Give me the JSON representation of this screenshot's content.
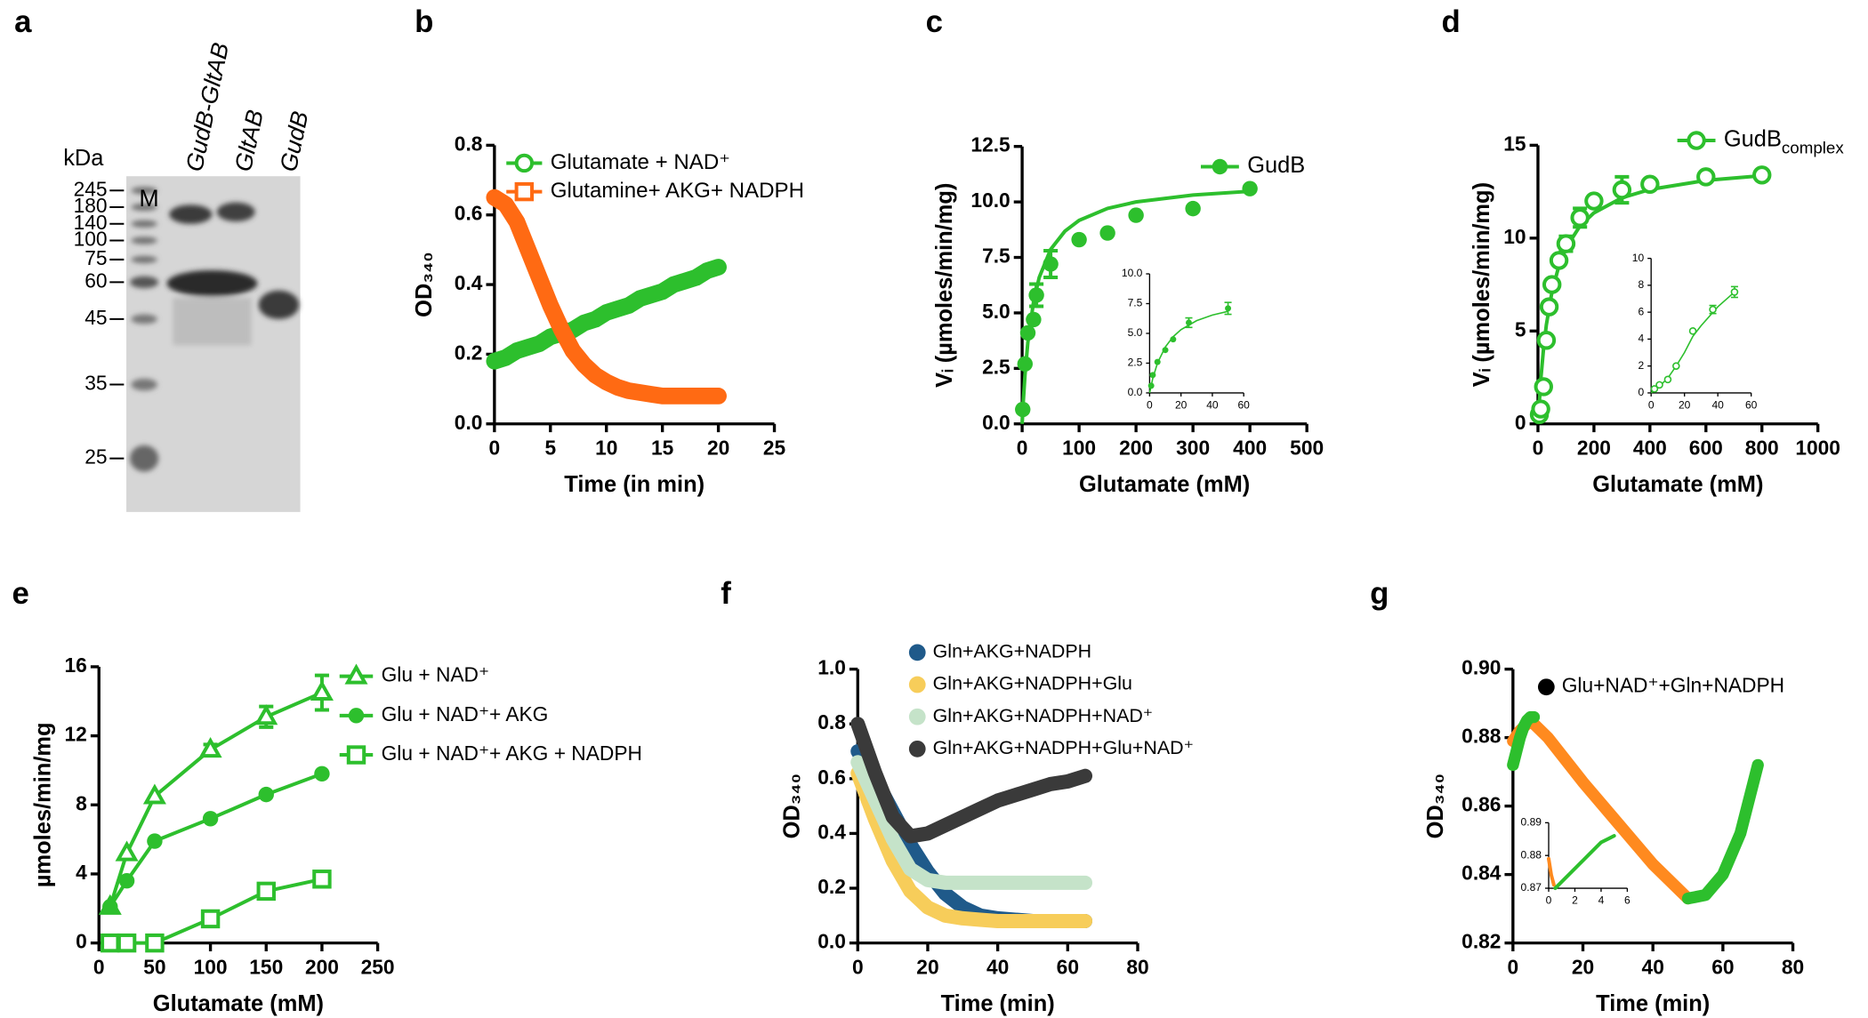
{
  "gel": {
    "panel": "a",
    "unit": "kDa",
    "ladder": [
      245,
      180,
      140,
      100,
      75,
      60,
      45,
      35,
      25
    ],
    "lanes": [
      "M",
      "GudB-GltAB",
      "GltAB",
      "GudB"
    ]
  },
  "chart_data": [
    {
      "type": "line",
      "panel": "b",
      "xlabel": "Time (in min)",
      "ylabel": "OD₃₄₀",
      "xlim": [
        0,
        25
      ],
      "ylim": [
        0,
        0.8
      ],
      "xticks": [
        0,
        5,
        10,
        15,
        20,
        25
      ],
      "yticks": [
        {
          "value": 0,
          "label": "0.0"
        },
        0.2,
        0.4,
        0.6,
        0.8
      ],
      "series": [
        {
          "name": "Glutamate + NAD⁺",
          "color": "#2dbf2d",
          "marker": "open-circle",
          "dense": true,
          "x": [
            0,
            1,
            2,
            3,
            4,
            5,
            6,
            7,
            8,
            9,
            10,
            11,
            12,
            13,
            14,
            15,
            16,
            17,
            18,
            19,
            20
          ],
          "values": [
            0.18,
            0.19,
            0.21,
            0.22,
            0.23,
            0.25,
            0.26,
            0.27,
            0.29,
            0.3,
            0.32,
            0.33,
            0.34,
            0.36,
            0.37,
            0.38,
            0.4,
            0.41,
            0.42,
            0.44,
            0.45
          ]
        },
        {
          "name": "Glutamine+ AKG+ NADPH",
          "color": "#ff6a13",
          "marker": "open-square",
          "dense": true,
          "x": [
            0,
            1,
            2,
            3,
            4,
            5,
            6,
            7,
            8,
            9,
            10,
            11,
            12,
            13,
            14,
            15,
            16,
            17,
            18,
            19,
            20
          ],
          "values": [
            0.65,
            0.63,
            0.58,
            0.5,
            0.42,
            0.34,
            0.27,
            0.21,
            0.17,
            0.14,
            0.12,
            0.105,
            0.095,
            0.09,
            0.085,
            0.08,
            0.08,
            0.08,
            0.08,
            0.08,
            0.08
          ]
        }
      ]
    },
    {
      "type": "scatter",
      "panel": "c",
      "xlabel": "Glutamate (mM)",
      "ylabel": "Vᵢ (µmoles/min/mg)",
      "xlim": [
        0,
        500
      ],
      "ylim": [
        0,
        12.5
      ],
      "xticks": [
        0,
        100,
        200,
        300,
        400,
        500
      ],
      "yticks": [
        {
          "value": 0,
          "label": "0.0"
        },
        2.5,
        {
          "value": 5,
          "label": "5.0"
        },
        7.5,
        {
          "value": 10,
          "label": "10.0"
        },
        12.5
      ],
      "series": [
        {
          "name": "GudB",
          "color": "#2dbf2d",
          "marker": "circle",
          "x": [
            1,
            5,
            10,
            20,
            25,
            50,
            100,
            150,
            200,
            300,
            400
          ],
          "values": [
            0.65,
            2.7,
            4.1,
            4.7,
            5.8,
            7.2,
            8.3,
            8.6,
            9.4,
            9.7,
            10.6
          ],
          "errors": [
            0,
            0,
            0,
            0,
            0.5,
            0.6,
            0,
            0,
            0,
            0,
            0
          ],
          "fit": {
            "x": [
              0,
              2,
              5,
              10,
              20,
              30,
              50,
              75,
              100,
              150,
              200,
              300,
              400
            ],
            "values": [
              0,
              1.0,
              2.2,
              3.67,
              5.5,
              6.6,
              7.86,
              8.68,
              9.17,
              9.71,
              10.0,
              10.31,
              10.48
            ]
          }
        }
      ]
    },
    {
      "type": "scatter",
      "xlim": [
        0,
        60
      ],
      "ylim": [
        0,
        10
      ],
      "xticks": [
        0,
        20,
        40,
        60
      ],
      "yticks": [
        {
          "value": 0,
          "label": "0.0"
        },
        2.5,
        {
          "value": 5,
          "label": "5.0"
        },
        7.5,
        {
          "value": 10,
          "label": "10.0"
        }
      ],
      "series": [
        {
          "color": "#2dbf2d",
          "marker": "circle",
          "x": [
            1,
            2,
            5,
            10,
            15,
            25,
            50
          ],
          "values": [
            0.6,
            1.5,
            2.6,
            3.6,
            4.5,
            5.9,
            7.1
          ],
          "errors": [
            0,
            0,
            0,
            0,
            0,
            0.4,
            0.5
          ],
          "fit": {
            "x": [
              0,
              2,
              5,
              10,
              15,
              20,
              30,
              40,
              50
            ],
            "values": [
              0,
              1.21,
              2.5,
              3.86,
              4.72,
              5.31,
              6.07,
              6.54,
              6.85
            ]
          }
        }
      ]
    },
    {
      "type": "scatter",
      "panel": "d",
      "xlabel": "Glutamate (mM)",
      "ylabel": "Vᵢ (µmoles/min/mg)",
      "xlim": [
        0,
        1000
      ],
      "ylim": [
        0,
        15
      ],
      "xticks": [
        0,
        200,
        400,
        600,
        800,
        1000
      ],
      "yticks": [
        0,
        5,
        10,
        15
      ],
      "series": [
        {
          "name": "GudB",
          "name_sub": "complex",
          "color": "#2dbf2d",
          "marker": "open-circle",
          "x": [
            5,
            10,
            20,
            30,
            40,
            50,
            75,
            100,
            150,
            200,
            300,
            400,
            600,
            800
          ],
          "values": [
            0.5,
            0.8,
            2,
            4.5,
            6.3,
            7.5,
            8.8,
            9.7,
            11.1,
            12,
            12.6,
            12.9,
            13.3,
            13.4
          ],
          "errors": [
            0,
            0,
            0,
            0,
            0,
            0,
            0,
            0.4,
            0.5,
            0,
            0.7,
            0,
            0,
            0
          ],
          "fit": {
            "x": [
              0,
              10,
              20,
              30,
              50,
              75,
              100,
              150,
              200,
              300,
              400,
              600,
              800
            ],
            "values": [
              0,
              2.37,
              4.06,
              5.33,
              7.1,
              8.52,
              9.47,
              10.65,
              11.36,
              12.17,
              12.62,
              13.11,
              13.36
            ]
          }
        }
      ]
    },
    {
      "type": "scatter",
      "xlim": [
        0,
        60
      ],
      "ylim": [
        0,
        10
      ],
      "xticks": [
        0,
        20,
        40,
        60
      ],
      "yticks": [
        0,
        2,
        4,
        6,
        8,
        10
      ],
      "series": [
        {
          "color": "#2dbf2d",
          "marker": "open-circle",
          "x": [
            2,
            5,
            10,
            15,
            25,
            37,
            50
          ],
          "values": [
            0.3,
            0.6,
            1.0,
            2.0,
            4.6,
            6.2,
            7.5
          ],
          "errors": [
            0,
            0,
            0,
            0,
            0,
            0.3,
            0.4
          ],
          "fit": {
            "x": [
              0,
              5,
              10,
              15,
              20,
              25,
              30,
              40,
              50
            ],
            "values": [
              0,
              0.5,
              1.1,
              2.0,
              3.0,
              4.2,
              5.0,
              6.4,
              7.5
            ]
          }
        }
      ]
    },
    {
      "type": "line",
      "panel": "e",
      "xlabel": "Glutamate (mM)",
      "ylabel": "µmoles/min/mg",
      "xlim": [
        0,
        250
      ],
      "ylim": [
        0,
        16
      ],
      "xticks": [
        0,
        50,
        100,
        150,
        200,
        250
      ],
      "yticks": [
        0,
        4,
        8,
        12,
        16
      ],
      "series": [
        {
          "name": "Glu + NAD⁺",
          "color": "#2dbf2d",
          "marker": "open-triangle",
          "x": [
            10,
            25,
            50,
            100,
            150,
            200
          ],
          "values": [
            2.1,
            5.2,
            8.5,
            11.2,
            13.1,
            14.5
          ],
          "errors": [
            0,
            0,
            0,
            0.3,
            0.6,
            1.0
          ]
        },
        {
          "name": "Glu + NAD⁺+ AKG",
          "color": "#2dbf2d",
          "marker": "circle",
          "x": [
            10,
            25,
            50,
            100,
            150,
            200
          ],
          "values": [
            2.1,
            3.6,
            5.9,
            7.2,
            8.6,
            9.8
          ],
          "errors": [
            0,
            0,
            0,
            0,
            0,
            0
          ]
        },
        {
          "name": "Glu + NAD⁺+ AKG + NADPH",
          "color": "#2dbf2d",
          "marker": "open-square",
          "x": [
            10,
            25,
            50,
            100,
            150,
            200
          ],
          "values": [
            0,
            0,
            0,
            1.4,
            3.0,
            3.7
          ],
          "errors": [
            0,
            0,
            0,
            0,
            0,
            0
          ]
        }
      ]
    },
    {
      "type": "line",
      "panel": "f",
      "xlabel": "Time (min)",
      "ylabel": "OD₃₄₀",
      "xlim": [
        0,
        80
      ],
      "ylim": [
        0,
        1
      ],
      "xticks": [
        0,
        20,
        40,
        60,
        80
      ],
      "yticks": [
        {
          "value": 0,
          "label": "0.0"
        },
        0.2,
        0.4,
        0.6,
        0.8,
        {
          "value": 1,
          "label": "1.0"
        }
      ],
      "series": [
        {
          "name": "Gln+AKG+NADPH",
          "color": "#1f5a8a",
          "dense": true,
          "x": [
            0,
            5,
            10,
            15,
            20,
            25,
            30,
            35,
            40,
            45,
            50,
            55,
            60,
            65
          ],
          "values": [
            0.7,
            0.6,
            0.48,
            0.36,
            0.26,
            0.18,
            0.13,
            0.1,
            0.09,
            0.085,
            0.08,
            0.08,
            0.08,
            0.08
          ]
        },
        {
          "name": "Gln+AKG+NADPH+Glu",
          "color": "#f7cd5a",
          "dense": true,
          "x": [
            0,
            5,
            10,
            15,
            20,
            25,
            30,
            35,
            40,
            45,
            50,
            55,
            60,
            65
          ],
          "values": [
            0.62,
            0.45,
            0.3,
            0.19,
            0.13,
            0.1,
            0.09,
            0.085,
            0.08,
            0.08,
            0.08,
            0.08,
            0.08,
            0.08
          ]
        },
        {
          "name": "Gln+AKG+NADPH+NAD⁺",
          "color": "#c5e3c9",
          "dense": true,
          "x": [
            0,
            5,
            10,
            15,
            20,
            25,
            30,
            35,
            40,
            45,
            50,
            55,
            60,
            65
          ],
          "values": [
            0.66,
            0.52,
            0.38,
            0.27,
            0.23,
            0.22,
            0.22,
            0.22,
            0.22,
            0.22,
            0.22,
            0.22,
            0.22,
            0.22
          ]
        },
        {
          "name": "Gln+AKG+NADPH+Glu+NAD⁺",
          "color": "#3a3a3a",
          "dense": true,
          "x": [
            0,
            5,
            10,
            15,
            20,
            25,
            30,
            35,
            40,
            45,
            50,
            55,
            60,
            65
          ],
          "values": [
            0.8,
            0.62,
            0.46,
            0.39,
            0.4,
            0.43,
            0.46,
            0.49,
            0.52,
            0.54,
            0.56,
            0.58,
            0.59,
            0.61
          ]
        }
      ]
    },
    {
      "type": "line",
      "panel": "g",
      "xlabel": "Time (min)",
      "ylabel": "OD₃₄₀",
      "xlim": [
        0,
        80
      ],
      "ylim": [
        0.82,
        0.9
      ],
      "xticks": [
        0,
        20,
        40,
        60,
        80
      ],
      "yticks": [
        0.82,
        0.84,
        0.86,
        0.88,
        {
          "value": 0.9,
          "label": "0.90"
        }
      ],
      "legend": [
        {
          "name": "Glu+NAD⁺+Gln+NADPH",
          "color": "#000000"
        }
      ],
      "series": [
        {
          "color": "#ff8a1f",
          "dense": true,
          "x": [
            0,
            2,
            5,
            10,
            20,
            30,
            40,
            50
          ],
          "values": [
            0.879,
            0.882,
            0.885,
            0.88,
            0.867,
            0.855,
            0.843,
            0.833
          ]
        },
        {
          "color": "#2dbf2d",
          "dense": true,
          "x": [
            0,
            1,
            2,
            3,
            4,
            5,
            6
          ],
          "values": [
            0.872,
            0.876,
            0.88,
            0.883,
            0.885,
            0.886,
            0.886
          ]
        },
        {
          "color": "#2dbf2d",
          "dense": true,
          "x": [
            50,
            55,
            60,
            65,
            70
          ],
          "values": [
            0.833,
            0.834,
            0.84,
            0.852,
            0.872
          ]
        }
      ]
    },
    {
      "type": "line",
      "xlim": [
        0,
        6
      ],
      "ylim": [
        0.87,
        0.89
      ],
      "xticks": [
        0,
        2,
        4,
        6
      ],
      "yticks": [
        0.87,
        0.88,
        0.89
      ],
      "series": [
        {
          "color": "#ff8a1f",
          "dense": true,
          "x": [
            0,
            0.2,
            0.4
          ],
          "values": [
            0.879,
            0.874,
            0.871
          ]
        },
        {
          "color": "#2dbf2d",
          "dense": true,
          "x": [
            0.5,
            1,
            1.5,
            2,
            2.5,
            3,
            3.5,
            4,
            4.5,
            5
          ],
          "values": [
            0.87,
            0.872,
            0.874,
            0.876,
            0.878,
            0.88,
            0.882,
            0.884,
            0.885,
            0.886
          ]
        }
      ]
    }
  ]
}
